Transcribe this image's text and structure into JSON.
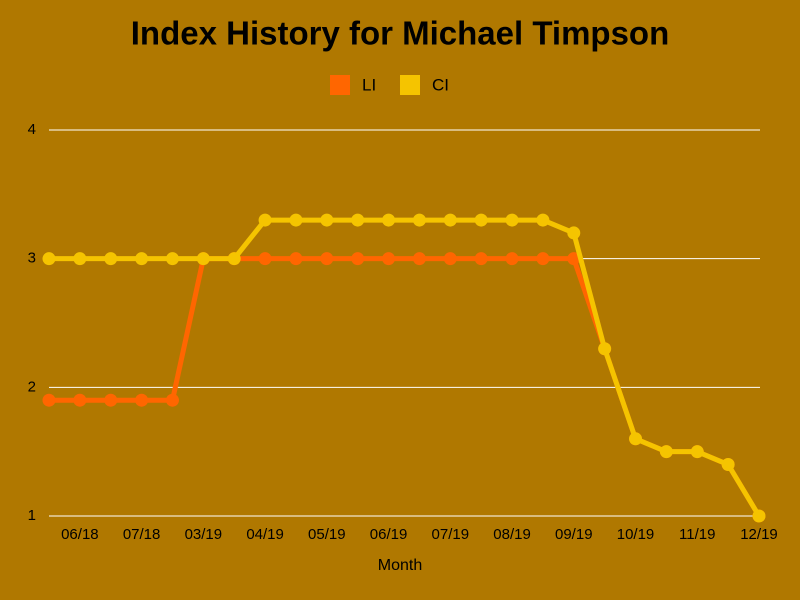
{
  "chart_data": {
    "type": "line",
    "title": "Index History for Michael  Timpson",
    "x_label": "Month",
    "categories": [
      null,
      "06/18",
      null,
      "07/18",
      null,
      "03/19",
      null,
      "04/19",
      null,
      "05/19",
      null,
      "06/19",
      null,
      "07/19",
      null,
      "08/19",
      null,
      "09/19",
      null,
      "10/19",
      null,
      "11/19",
      null,
      "12/19"
    ],
    "series": [
      {
        "name": "LI",
        "color": "#ff6600",
        "values": [
          1.9,
          1.9,
          1.9,
          1.9,
          1.9,
          3,
          3,
          3,
          3,
          3,
          3,
          3,
          3,
          3,
          3,
          3,
          3,
          3,
          2.3,
          1.6,
          1.5,
          1.5,
          1.4,
          1.0
        ]
      },
      {
        "name": "CI",
        "color": "#f5c400",
        "values": [
          3,
          3,
          3,
          3,
          3,
          3,
          3,
          3.3,
          3.3,
          3.3,
          3.3,
          3.3,
          3.3,
          3.3,
          3.3,
          3.3,
          3.3,
          3.2,
          2.3,
          1.6,
          1.5,
          1.5,
          1.4,
          1.0
        ]
      }
    ],
    "ylim": [
      1,
      4
    ],
    "yticks": [
      1,
      2,
      3,
      4
    ],
    "grid": true,
    "legend": "top"
  }
}
